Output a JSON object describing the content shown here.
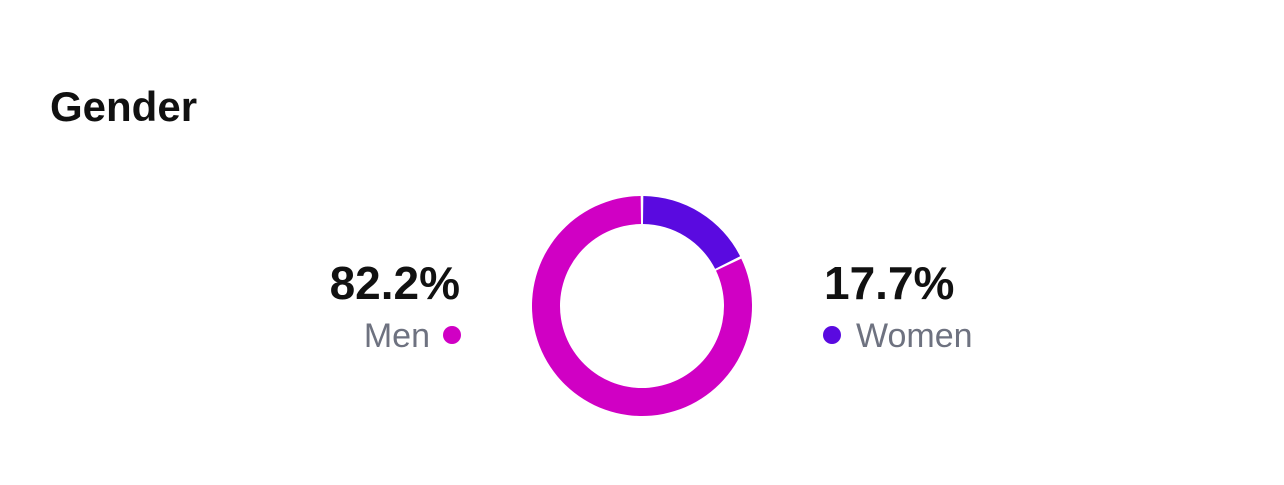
{
  "chart_data": {
    "type": "donut",
    "title": "Gender",
    "categories": [
      "Men",
      "Women"
    ],
    "values": [
      82.2,
      17.7
    ],
    "value_labels": [
      "82.2%",
      "17.7%"
    ],
    "colors": [
      "#d000c4",
      "#5a0ae0"
    ]
  }
}
